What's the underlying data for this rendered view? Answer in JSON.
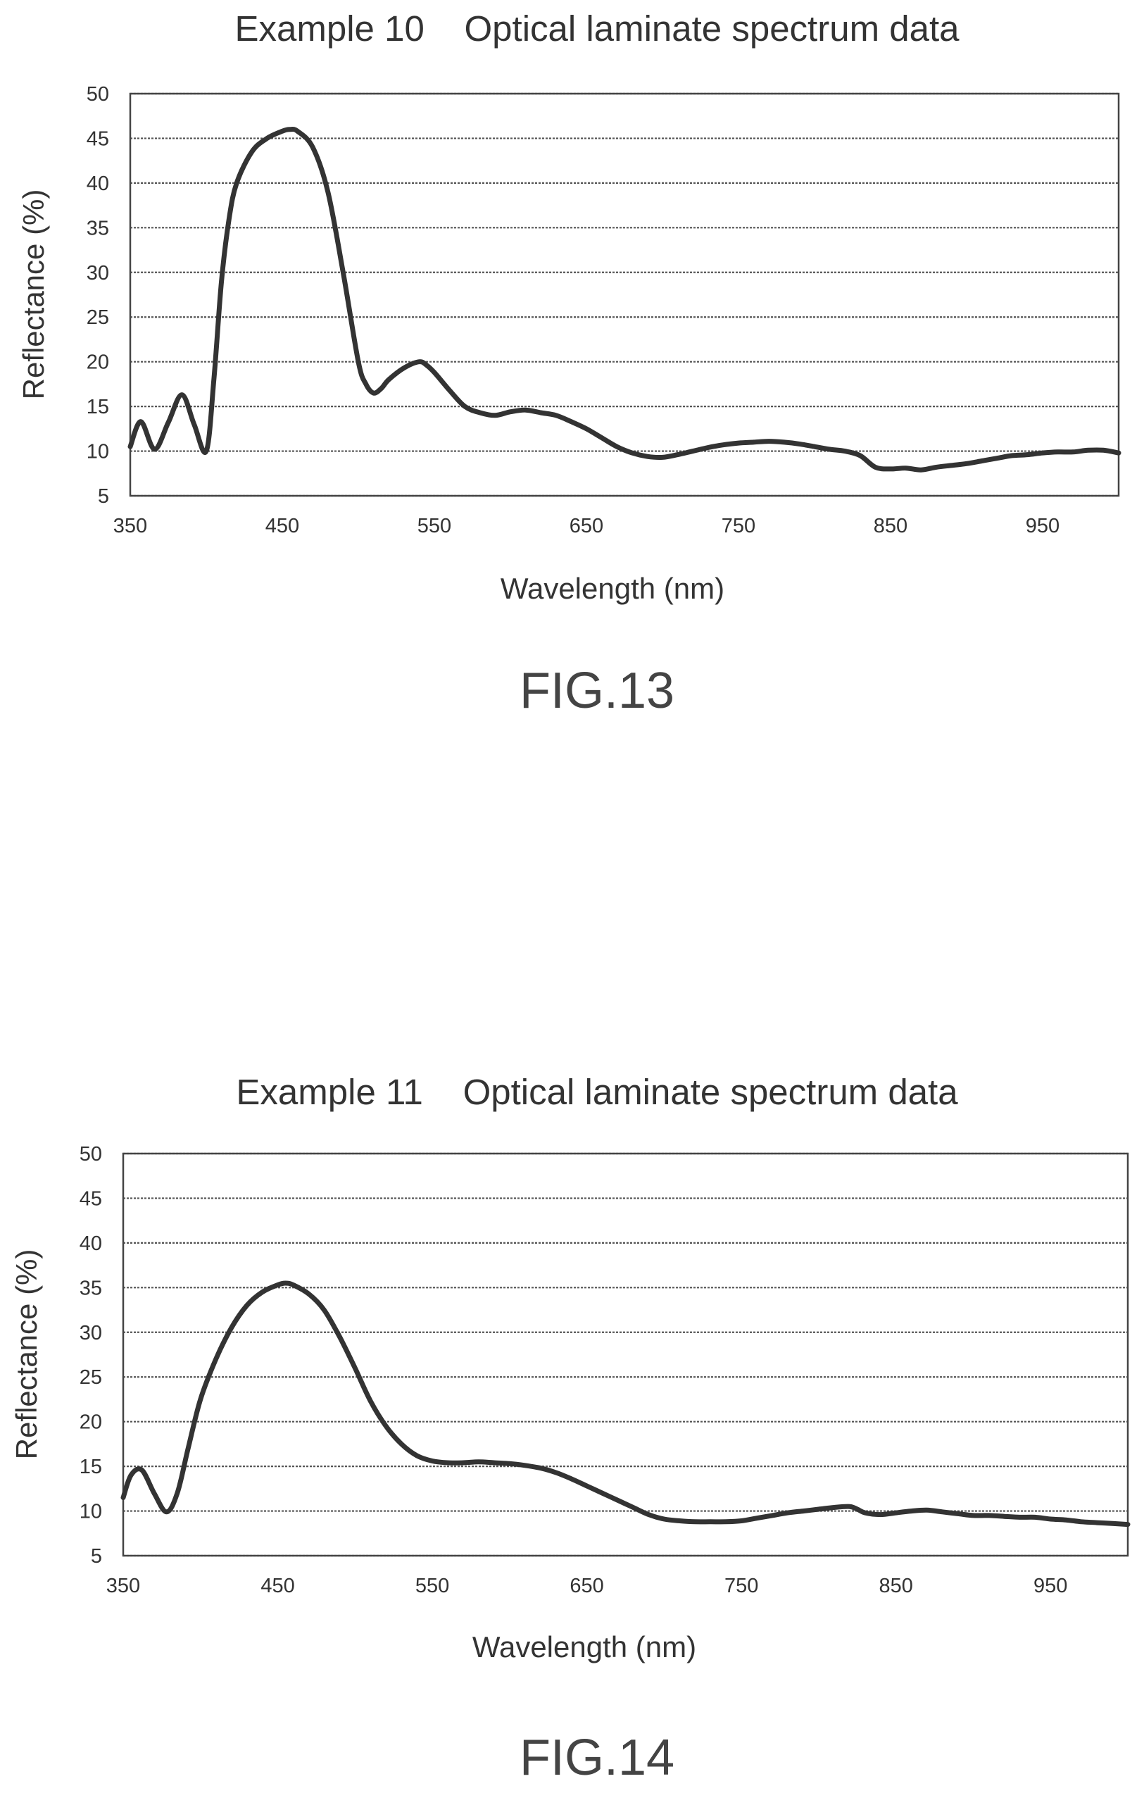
{
  "chart_data": [
    {
      "type": "line",
      "title": "Example 10    Optical laminate spectrum data",
      "xlabel": "Wavelength (nm)",
      "ylabel": "Reflectance (%)",
      "xlim": [
        350,
        1000
      ],
      "ylim": [
        5,
        50
      ],
      "x_ticks": [
        "350",
        "450",
        "550",
        "650",
        "750",
        "850",
        "950"
      ],
      "y_ticks": [
        "5",
        "10",
        "15",
        "20",
        "25",
        "30",
        "35",
        "40",
        "45",
        "50"
      ],
      "grid": true,
      "figure_label": "FIG.13",
      "series": [
        {
          "x": [
            350,
            357,
            366,
            375,
            384,
            392,
            400,
            405,
            410,
            415,
            420,
            430,
            440,
            450,
            455,
            460,
            470,
            480,
            490,
            500,
            505,
            510,
            515,
            520,
            530,
            540,
            545,
            550,
            560,
            570,
            580,
            590,
            600,
            610,
            620,
            630,
            640,
            650,
            660,
            670,
            680,
            690,
            700,
            710,
            720,
            730,
            740,
            750,
            760,
            770,
            780,
            790,
            800,
            810,
            820,
            830,
            840,
            850,
            860,
            870,
            880,
            890,
            900,
            910,
            920,
            930,
            940,
            950,
            960,
            970,
            980,
            990,
            1000
          ],
          "y": [
            10.5,
            13.3,
            10.2,
            13.2,
            16.3,
            13.0,
            10.0,
            18.0,
            29.0,
            36.0,
            40.0,
            43.5,
            45.0,
            45.8,
            46.0,
            45.8,
            44.0,
            39.0,
            30.0,
            20.0,
            17.5,
            16.5,
            17.0,
            18.0,
            19.3,
            20.0,
            19.6,
            18.8,
            16.8,
            15.0,
            14.3,
            14.0,
            14.4,
            14.6,
            14.3,
            14.0,
            13.3,
            12.5,
            11.5,
            10.5,
            9.8,
            9.4,
            9.3,
            9.6,
            10.0,
            10.4,
            10.7,
            10.9,
            11.0,
            11.1,
            11.0,
            10.8,
            10.5,
            10.2,
            10.0,
            9.5,
            8.2,
            8.0,
            8.1,
            7.9,
            8.2,
            8.4,
            8.6,
            8.9,
            9.2,
            9.5,
            9.6,
            9.8,
            9.9,
            9.9,
            10.1,
            10.1,
            9.8
          ]
        }
      ]
    },
    {
      "type": "line",
      "title": "Example 11    Optical laminate spectrum data",
      "xlabel": "Wavelength (nm)",
      "ylabel": "Reflectance (%)",
      "xlim": [
        350,
        1000
      ],
      "ylim": [
        5,
        50
      ],
      "x_ticks": [
        "350",
        "450",
        "550",
        "650",
        "750",
        "850",
        "950"
      ],
      "y_ticks": [
        "5",
        "10",
        "15",
        "20",
        "25",
        "30",
        "35",
        "40",
        "45",
        "50"
      ],
      "grid": true,
      "figure_label": "FIG.14",
      "series": [
        {
          "x": [
            350,
            355,
            362,
            370,
            378,
            385,
            392,
            400,
            410,
            420,
            430,
            440,
            450,
            455,
            460,
            470,
            480,
            490,
            500,
            510,
            520,
            530,
            540,
            550,
            560,
            570,
            580,
            590,
            600,
            610,
            620,
            630,
            640,
            650,
            660,
            670,
            680,
            690,
            700,
            710,
            720,
            730,
            740,
            750,
            760,
            770,
            780,
            790,
            800,
            810,
            820,
            825,
            830,
            840,
            850,
            860,
            870,
            880,
            890,
            900,
            910,
            920,
            930,
            940,
            950,
            960,
            970,
            980,
            990,
            1000
          ],
          "y": [
            11.5,
            14.0,
            14.6,
            12.0,
            9.9,
            12.0,
            17.0,
            22.5,
            27.0,
            30.5,
            33.0,
            34.5,
            35.3,
            35.5,
            35.3,
            34.3,
            32.5,
            29.5,
            26.0,
            22.3,
            19.5,
            17.5,
            16.2,
            15.6,
            15.4,
            15.4,
            15.5,
            15.4,
            15.3,
            15.1,
            14.8,
            14.3,
            13.6,
            12.8,
            12.0,
            11.2,
            10.4,
            9.6,
            9.1,
            8.9,
            8.8,
            8.8,
            8.8,
            8.9,
            9.2,
            9.5,
            9.8,
            10.0,
            10.2,
            10.4,
            10.5,
            10.2,
            9.8,
            9.6,
            9.8,
            10.0,
            10.1,
            9.9,
            9.7,
            9.5,
            9.5,
            9.4,
            9.3,
            9.3,
            9.1,
            9.0,
            8.8,
            8.7,
            8.6,
            8.5
          ]
        }
      ]
    }
  ]
}
